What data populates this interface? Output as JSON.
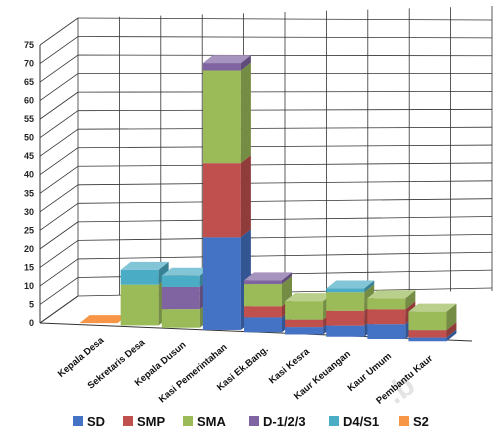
{
  "chart_data": {
    "type": "bar",
    "stacked": true,
    "three_d": true,
    "title": "",
    "xlabel": "",
    "ylabel": "",
    "ylim": [
      0,
      75
    ],
    "yticks": [
      0,
      5,
      10,
      15,
      20,
      25,
      30,
      35,
      40,
      45,
      50,
      55,
      60,
      65,
      70,
      75
    ],
    "grid": true,
    "legend_position": "bottom",
    "categories": [
      "Kepala Desa",
      "Sekretaris Desa",
      "Kepala Dusun",
      "Kasi Pemerintahan",
      "Kasi Ek.Bang.",
      "Kasi Kesra",
      "Kaur Keuangan",
      "Kaur Umum",
      "Pembantu Kaur"
    ],
    "series": [
      {
        "name": "SD",
        "color": "#4472c4",
        "values": [
          0,
          0,
          0,
          25,
          4,
          2,
          3,
          4,
          1
        ]
      },
      {
        "name": "SMP",
        "color": "#c0504d",
        "values": [
          0,
          0,
          0,
          20,
          3,
          2,
          4,
          4,
          2
        ]
      },
      {
        "name": "SMA",
        "color": "#9bbb59",
        "values": [
          0,
          11,
          5,
          25,
          6,
          5,
          5,
          3,
          5
        ]
      },
      {
        "name": "D-1/2/3",
        "color": "#8064a2",
        "values": [
          0,
          0,
          6,
          2,
          1,
          0,
          0,
          0,
          0
        ]
      },
      {
        "name": "D4/S1",
        "color": "#4bacc6",
        "values": [
          0,
          4,
          3,
          0,
          0,
          0,
          1,
          0,
          0
        ]
      },
      {
        "name": "S2",
        "color": "#f79646",
        "values": [
          0,
          0,
          0,
          0,
          0,
          0,
          0,
          0,
          0
        ]
      }
    ]
  }
}
